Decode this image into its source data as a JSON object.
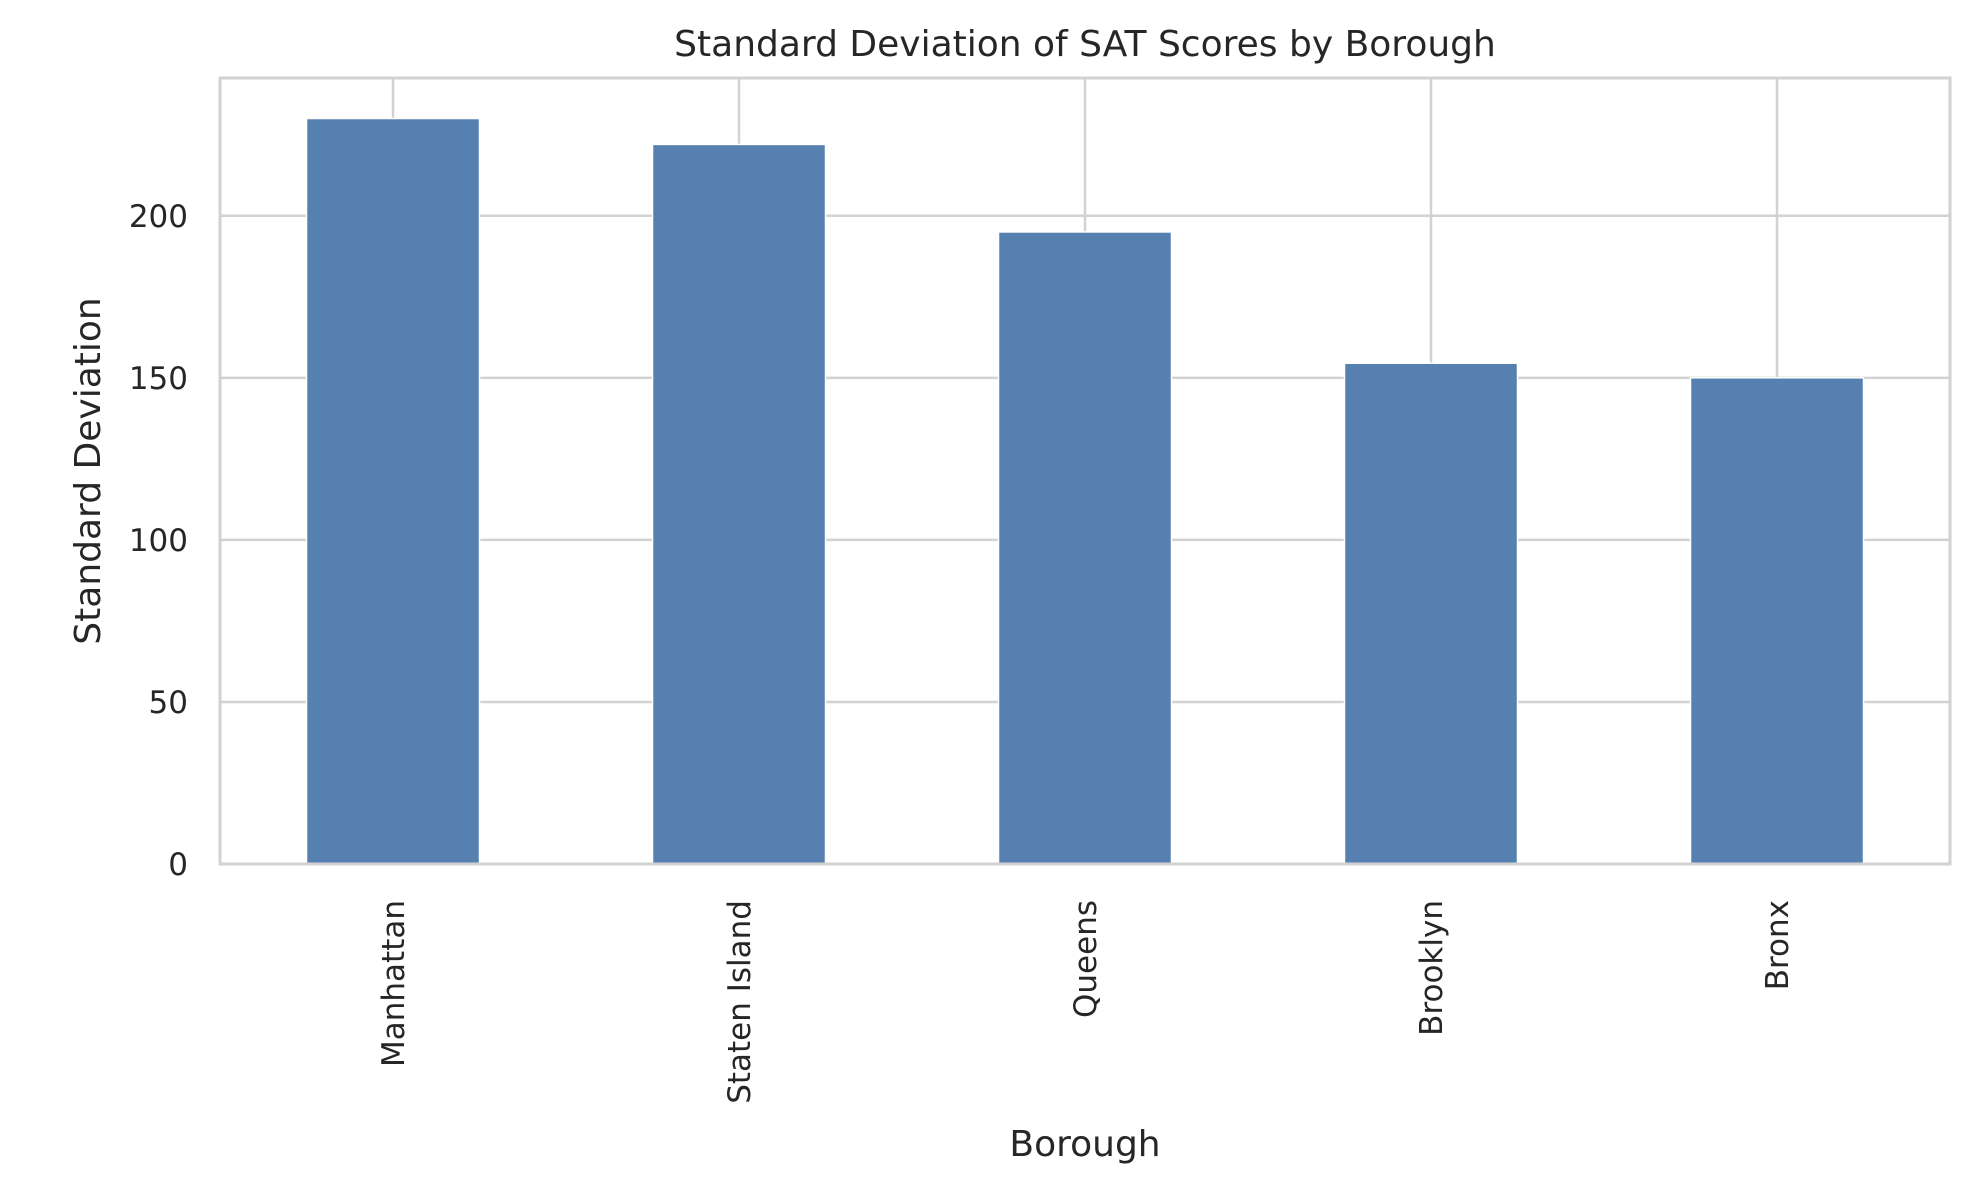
{
  "chart_data": {
    "type": "bar",
    "title": "Standard Deviation of SAT Scores by Borough",
    "xlabel": "Borough",
    "ylabel": "Standard Deviation",
    "categories": [
      "Manhattan",
      "Staten Island",
      "Queens",
      "Brooklyn",
      "Bronx"
    ],
    "values": [
      230,
      222,
      195,
      154.5,
      150
    ],
    "ylim": [
      0,
      242.5
    ],
    "yticks": [
      0,
      50,
      100,
      150,
      200
    ],
    "grid": true,
    "legend": "none",
    "bar_color": "#5580b0",
    "grid_color": "#d2d2d2",
    "text_color": "#262626"
  }
}
